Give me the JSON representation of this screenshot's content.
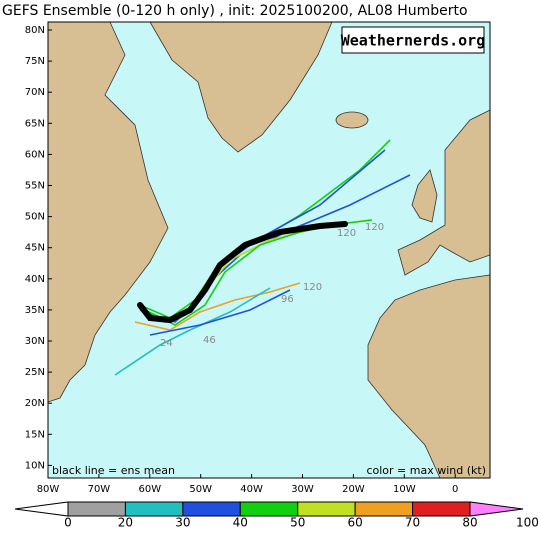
{
  "header": {
    "title": "GEFS Ensemble (0-120 h only) , init: 2025100200, AL08 Humberto",
    "watermark": "Weathernerds.org"
  },
  "map": {
    "lat_labels": [
      "80N",
      "75N",
      "70N",
      "65N",
      "60N",
      "55N",
      "50N",
      "45N",
      "40N",
      "35N",
      "30N",
      "25N",
      "20N",
      "15N",
      "10N"
    ],
    "lon_labels": [
      "80W",
      "70W",
      "60W",
      "50W",
      "40W",
      "30W",
      "20W",
      "10W",
      "0"
    ],
    "annotation_left": "black line = ens mean",
    "annotation_right": "color = max wind (kt)",
    "track_labels": [
      "24",
      "46",
      "96",
      "120",
      "120",
      "120"
    ]
  },
  "colorbar": {
    "ticks": [
      "0",
      "20",
      "30",
      "40",
      "50",
      "60",
      "70",
      "80",
      "100"
    ],
    "colors": [
      "#ffffff",
      "#a0a0a0",
      "#20c0c0",
      "#2050e0",
      "#10d010",
      "#c0e020",
      "#f0a020",
      "#e02020",
      "#ff80ff"
    ]
  }
}
